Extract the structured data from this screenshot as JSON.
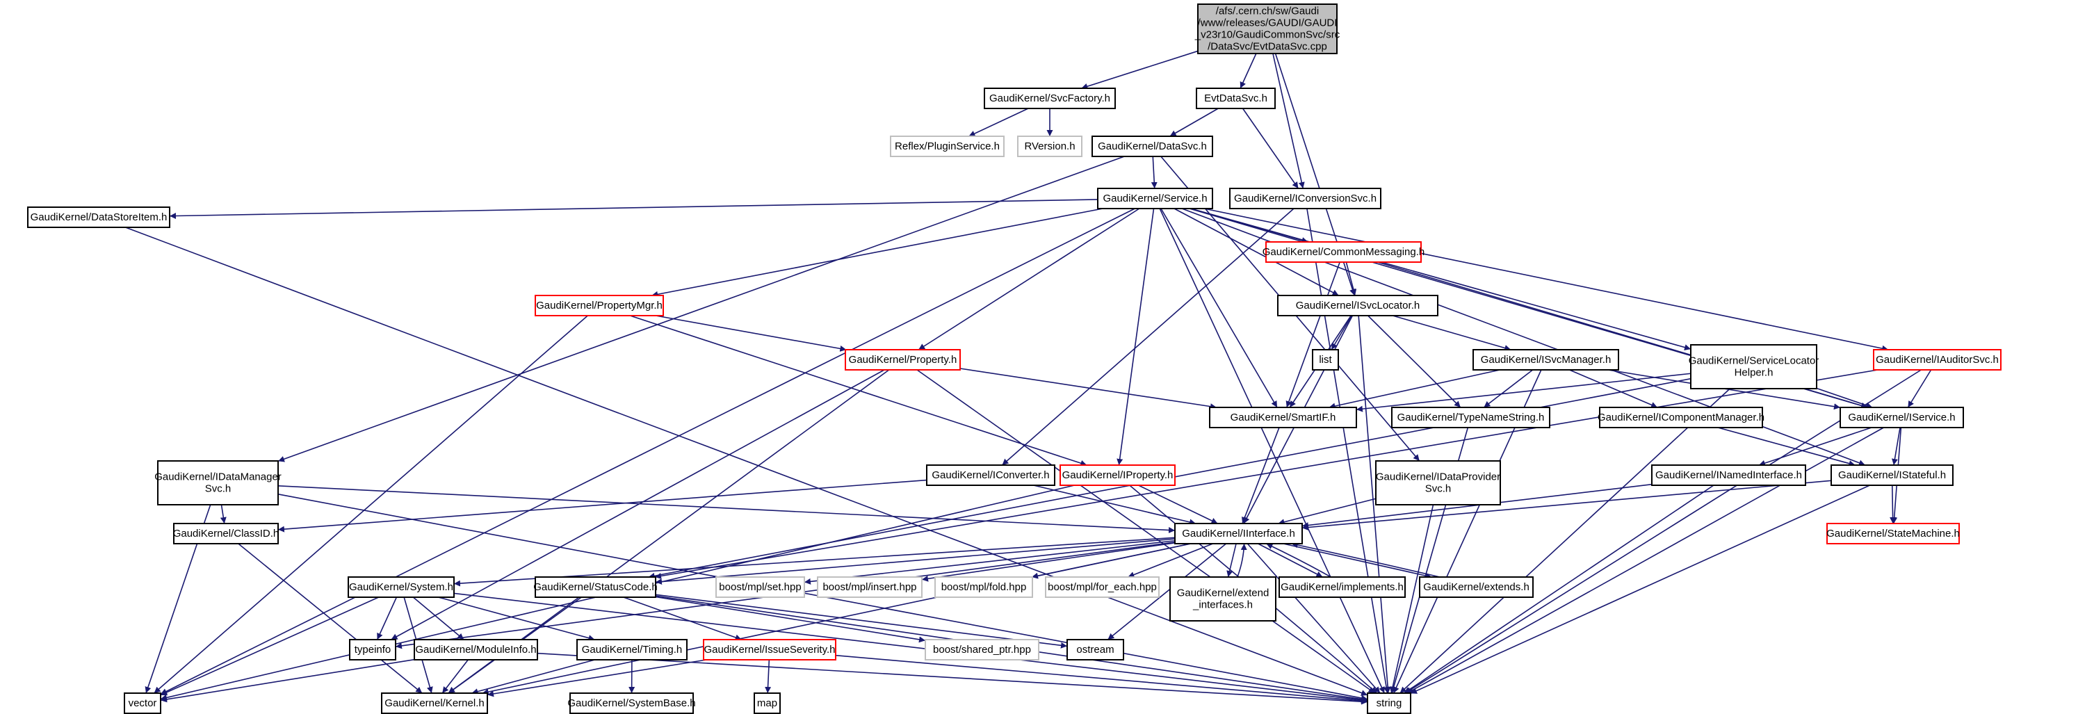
{
  "colors": {
    "edge": "#191970",
    "root_fill": "#bfbfbf",
    "incomplete_border": "#ff0000",
    "external_border": "#bfbfbf",
    "node_border": "#000000"
  },
  "nodes": [
    {
      "id": "root",
      "lines": [
        "/afs/.cern.ch/sw/Gaudi",
        "/www/releases/GAUDI/GAUDI",
        "_v23r10/GaudiCommonSvc/src",
        "/DataSvc/EvtDataSvc.cpp"
      ],
      "style": "root"
    },
    {
      "id": "svcfactory",
      "lines": [
        "GaudiKernel/SvcFactory.h"
      ],
      "style": "normal"
    },
    {
      "id": "evtdatasvc",
      "lines": [
        "EvtDataSvc.h"
      ],
      "style": "normal"
    },
    {
      "id": "plugin",
      "lines": [
        "Reflex/PluginService.h"
      ],
      "style": "gray"
    },
    {
      "id": "rversion",
      "lines": [
        "RVersion.h"
      ],
      "style": "gray"
    },
    {
      "id": "datasvc",
      "lines": [
        "GaudiKernel/DataSvc.h"
      ],
      "style": "normal"
    },
    {
      "id": "service",
      "lines": [
        "GaudiKernel/Service.h"
      ],
      "style": "normal"
    },
    {
      "id": "iconv",
      "lines": [
        "GaudiKernel/IConversionSvc.h"
      ],
      "style": "normal"
    },
    {
      "id": "datastore",
      "lines": [
        "GaudiKernel/DataStoreItem.h"
      ],
      "style": "normal"
    },
    {
      "id": "commonmsg",
      "lines": [
        "GaudiKernel/CommonMessaging.h"
      ],
      "style": "red"
    },
    {
      "id": "propmgr",
      "lines": [
        "GaudiKernel/PropertyMgr.h"
      ],
      "style": "red"
    },
    {
      "id": "isvcloc",
      "lines": [
        "GaudiKernel/ISvcLocator.h"
      ],
      "style": "normal"
    },
    {
      "id": "property",
      "lines": [
        "GaudiKernel/Property.h"
      ],
      "style": "red"
    },
    {
      "id": "list",
      "lines": [
        "list"
      ],
      "style": "normal"
    },
    {
      "id": "isvcmgr",
      "lines": [
        "GaudiKernel/ISvcManager.h"
      ],
      "style": "normal"
    },
    {
      "id": "slhelper",
      "lines": [
        "GaudiKernel/ServiceLocator",
        "Helper.h"
      ],
      "style": "normal"
    },
    {
      "id": "iauditor",
      "lines": [
        "GaudiKernel/IAuditorSvc.h"
      ],
      "style": "red"
    },
    {
      "id": "smartif",
      "lines": [
        "GaudiKernel/SmartIF.h"
      ],
      "style": "normal"
    },
    {
      "id": "typename",
      "lines": [
        "GaudiKernel/TypeNameString.h"
      ],
      "style": "normal"
    },
    {
      "id": "icompmgr",
      "lines": [
        "GaudiKernel/IComponentManager.h"
      ],
      "style": "normal"
    },
    {
      "id": "iservice",
      "lines": [
        "GaudiKernel/IService.h"
      ],
      "style": "normal"
    },
    {
      "id": "idatamgr",
      "lines": [
        "GaudiKernel/IDataManager",
        "Svc.h"
      ],
      "style": "normal"
    },
    {
      "id": "iconverter",
      "lines": [
        "GaudiKernel/IConverter.h"
      ],
      "style": "normal"
    },
    {
      "id": "iproperty",
      "lines": [
        "GaudiKernel/IProperty.h"
      ],
      "style": "red"
    },
    {
      "id": "idataprov",
      "lines": [
        "GaudiKernel/IDataProvider",
        "Svc.h"
      ],
      "style": "normal"
    },
    {
      "id": "inamed",
      "lines": [
        "GaudiKernel/INamedInterface.h"
      ],
      "style": "normal"
    },
    {
      "id": "istateful",
      "lines": [
        "GaudiKernel/IStateful.h"
      ],
      "style": "normal"
    },
    {
      "id": "classid",
      "lines": [
        "GaudiKernel/ClassID.h"
      ],
      "style": "normal"
    },
    {
      "id": "iinterface",
      "lines": [
        "GaudiKernel/IInterface.h"
      ],
      "style": "normal"
    },
    {
      "id": "statemachine",
      "lines": [
        "GaudiKernel/StateMachine.h"
      ],
      "style": "red"
    },
    {
      "id": "system",
      "lines": [
        "GaudiKernel/System.h"
      ],
      "style": "normal"
    },
    {
      "id": "statuscode",
      "lines": [
        "GaudiKernel/StatusCode.h"
      ],
      "style": "normal"
    },
    {
      "id": "mplset",
      "lines": [
        "boost/mpl/set.hpp"
      ],
      "style": "gray"
    },
    {
      "id": "mplinsert",
      "lines": [
        "boost/mpl/insert.hpp"
      ],
      "style": "gray"
    },
    {
      "id": "mplfold",
      "lines": [
        "boost/mpl/fold.hpp"
      ],
      "style": "gray"
    },
    {
      "id": "mplforeach",
      "lines": [
        "boost/mpl/for_each.hpp"
      ],
      "style": "gray"
    },
    {
      "id": "extendif",
      "lines": [
        "GaudiKernel/extend",
        "_interfaces.h"
      ],
      "style": "normal"
    },
    {
      "id": "implements",
      "lines": [
        "GaudiKernel/implements.h"
      ],
      "style": "normal"
    },
    {
      "id": "extends",
      "lines": [
        "GaudiKernel/extends.h"
      ],
      "style": "normal"
    },
    {
      "id": "typeinfo",
      "lines": [
        "typeinfo"
      ],
      "style": "normal"
    },
    {
      "id": "moduleinfo",
      "lines": [
        "GaudiKernel/ModuleInfo.h"
      ],
      "style": "normal"
    },
    {
      "id": "timing",
      "lines": [
        "GaudiKernel/Timing.h"
      ],
      "style": "normal"
    },
    {
      "id": "issuesev",
      "lines": [
        "GaudiKernel/IssueSeverity.h"
      ],
      "style": "red"
    },
    {
      "id": "sharedptr",
      "lines": [
        "boost/shared_ptr.hpp"
      ],
      "style": "gray"
    },
    {
      "id": "ostream",
      "lines": [
        "ostream"
      ],
      "style": "normal"
    },
    {
      "id": "vector",
      "lines": [
        "vector"
      ],
      "style": "normal"
    },
    {
      "id": "kernel",
      "lines": [
        "GaudiKernel/Kernel.h"
      ],
      "style": "normal"
    },
    {
      "id": "systembase",
      "lines": [
        "GaudiKernel/SystemBase.h"
      ],
      "style": "normal"
    },
    {
      "id": "map",
      "lines": [
        "map"
      ],
      "style": "normal"
    },
    {
      "id": "string",
      "lines": [
        "string"
      ],
      "style": "normal"
    }
  ],
  "edges": [
    [
      "root",
      "svcfactory"
    ],
    [
      "root",
      "evtdatasvc"
    ],
    [
      "root",
      "iconv"
    ],
    [
      "root",
      "isvcloc"
    ],
    [
      "svcfactory",
      "plugin"
    ],
    [
      "svcfactory",
      "rversion"
    ],
    [
      "evtdatasvc",
      "datasvc"
    ],
    [
      "evtdatasvc",
      "iconv"
    ],
    [
      "datasvc",
      "service"
    ],
    [
      "datasvc",
      "idatamgr"
    ],
    [
      "datasvc",
      "idataprov"
    ],
    [
      "service",
      "datastore"
    ],
    [
      "service",
      "vector"
    ],
    [
      "service",
      "propmgr"
    ],
    [
      "service",
      "property"
    ],
    [
      "service",
      "iproperty"
    ],
    [
      "service",
      "smartif"
    ],
    [
      "service",
      "commonmsg"
    ],
    [
      "service",
      "isvcloc"
    ],
    [
      "service",
      "slhelper"
    ],
    [
      "service",
      "iservice"
    ],
    [
      "service",
      "iauditor"
    ],
    [
      "service",
      "istateful"
    ],
    [
      "service",
      "string"
    ],
    [
      "iconv",
      "iconverter"
    ],
    [
      "iconv",
      "string"
    ],
    [
      "commonmsg",
      "smartif"
    ],
    [
      "commonmsg",
      "isvcloc"
    ],
    [
      "commonmsg",
      "iservice"
    ],
    [
      "propmgr",
      "property"
    ],
    [
      "propmgr",
      "iproperty"
    ],
    [
      "propmgr",
      "vector"
    ],
    [
      "property",
      "smartif"
    ],
    [
      "property",
      "typeinfo"
    ],
    [
      "property",
      "kernel"
    ],
    [
      "property",
      "string"
    ],
    [
      "isvcloc",
      "list"
    ],
    [
      "isvcloc",
      "smartif"
    ],
    [
      "isvcloc",
      "typename"
    ],
    [
      "isvcloc",
      "isvcmgr"
    ],
    [
      "isvcloc",
      "iinterface"
    ],
    [
      "isvcloc",
      "string"
    ],
    [
      "isvcmgr",
      "smartif"
    ],
    [
      "isvcmgr",
      "typename"
    ],
    [
      "isvcmgr",
      "icompmgr"
    ],
    [
      "isvcmgr",
      "iservice"
    ],
    [
      "isvcmgr",
      "string"
    ],
    [
      "slhelper",
      "smartif"
    ],
    [
      "slhelper",
      "iservice"
    ],
    [
      "slhelper",
      "string"
    ],
    [
      "slhelper",
      "statuscode"
    ],
    [
      "iauditor",
      "iservice"
    ],
    [
      "iauditor",
      "string"
    ],
    [
      "iauditor",
      "statuscode"
    ],
    [
      "iservice",
      "inamed"
    ],
    [
      "iservice",
      "istateful"
    ],
    [
      "iservice",
      "statemachine"
    ],
    [
      "iservice",
      "string"
    ],
    [
      "icompmgr",
      "istateful"
    ],
    [
      "idatamgr",
      "classid"
    ],
    [
      "idatamgr",
      "iinterface"
    ],
    [
      "idatamgr",
      "vector"
    ],
    [
      "idatamgr",
      "string"
    ],
    [
      "iconverter",
      "classid"
    ],
    [
      "iconverter",
      "iinterface"
    ],
    [
      "iproperty",
      "iinterface"
    ],
    [
      "iproperty",
      "vector"
    ],
    [
      "iproperty",
      "string"
    ],
    [
      "idataprov",
      "iinterface"
    ],
    [
      "idataprov",
      "string"
    ],
    [
      "inamed",
      "iinterface"
    ],
    [
      "inamed",
      "string"
    ],
    [
      "istateful",
      "iinterface"
    ],
    [
      "istateful",
      "statemachine"
    ],
    [
      "istateful",
      "string"
    ],
    [
      "smartif",
      "iinterface"
    ],
    [
      "typename",
      "string"
    ],
    [
      "classid",
      "kernel"
    ],
    [
      "datastore",
      "string"
    ],
    [
      "iinterface",
      "system"
    ],
    [
      "iinterface",
      "statuscode"
    ],
    [
      "iinterface",
      "mplset"
    ],
    [
      "iinterface",
      "mplinsert"
    ],
    [
      "iinterface",
      "mplfold"
    ],
    [
      "iinterface",
      "mplforeach"
    ],
    [
      "iinterface",
      "extendif"
    ],
    [
      "iinterface",
      "implements"
    ],
    [
      "iinterface",
      "extends"
    ],
    [
      "iinterface",
      "typeinfo"
    ],
    [
      "iinterface",
      "kernel"
    ],
    [
      "iinterface",
      "ostream"
    ],
    [
      "iinterface",
      "string"
    ],
    [
      "extendif",
      "iinterface"
    ],
    [
      "implements",
      "iinterface"
    ],
    [
      "extends",
      "iinterface"
    ],
    [
      "system",
      "typeinfo"
    ],
    [
      "system",
      "vector"
    ],
    [
      "system",
      "kernel"
    ],
    [
      "system",
      "moduleinfo"
    ],
    [
      "system",
      "timing"
    ],
    [
      "system",
      "string"
    ],
    [
      "statuscode",
      "kernel"
    ],
    [
      "statuscode",
      "issuesev"
    ],
    [
      "statuscode",
      "ostream"
    ],
    [
      "statuscode",
      "sharedptr"
    ],
    [
      "statuscode",
      "string"
    ],
    [
      "moduleinfo",
      "vector"
    ],
    [
      "moduleinfo",
      "kernel"
    ],
    [
      "moduleinfo",
      "string"
    ],
    [
      "timing",
      "kernel"
    ],
    [
      "timing",
      "systembase"
    ],
    [
      "issuesev",
      "kernel"
    ],
    [
      "issuesev",
      "map"
    ],
    [
      "issuesev",
      "string"
    ]
  ]
}
